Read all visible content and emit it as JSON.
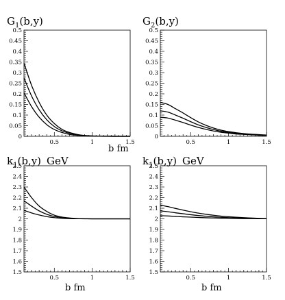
{
  "chart_data": [
    {
      "type": "line",
      "title": "G",
      "title_sub": "1",
      "title_rest": "(b,y)",
      "unit": "",
      "xlabel": "b fm",
      "xlim": [
        0.1,
        1.5
      ],
      "ylim": [
        0,
        0.5
      ],
      "xticks": [
        0.5,
        1,
        1.5
      ],
      "xticklabels": [
        "0.5",
        "1",
        "1.5"
      ],
      "yticks": [
        0,
        0.05,
        0.1,
        0.15,
        0.2,
        0.25,
        0.3,
        0.35,
        0.4,
        0.45,
        0.5
      ],
      "yticklabels": [
        "0",
        "0.05",
        "0.1",
        "0.15",
        "0.2",
        "0.25",
        "0.3",
        "0.35",
        "0.4",
        "0.45",
        "0.5"
      ],
      "x": [
        0.1,
        0.2,
        0.3,
        0.4,
        0.5,
        0.6,
        0.7,
        0.8,
        0.9,
        1.0,
        1.1,
        1.2,
        1.3,
        1.4,
        1.5
      ],
      "series": [
        {
          "values": [
            0.345,
            0.24,
            0.16,
            0.1,
            0.06,
            0.033,
            0.018,
            0.009,
            0.004,
            0.002,
            0.001,
            0.0005,
            0.0002,
            0.0001,
            0.0
          ]
        },
        {
          "values": [
            0.275,
            0.19,
            0.125,
            0.078,
            0.046,
            0.026,
            0.014,
            0.007,
            0.003,
            0.0015,
            0.0007,
            0.0003,
            0.0001,
            0.0,
            0.0
          ]
        },
        {
          "values": [
            0.205,
            0.14,
            0.09,
            0.055,
            0.032,
            0.018,
            0.009,
            0.0045,
            0.002,
            0.001,
            0.0004,
            0.0002,
            0.0001,
            0.0,
            0.0
          ]
        }
      ]
    },
    {
      "type": "line",
      "title": "G",
      "title_sub": "2",
      "title_rest": "(b,y)",
      "unit": "",
      "xlabel": "",
      "xlim": [
        0.1,
        1.5
      ],
      "ylim": [
        0,
        0.5
      ],
      "xticks": [
        0.5,
        1,
        1.5
      ],
      "xticklabels": [
        "0.5",
        "1",
        "1.5"
      ],
      "yticks": [
        0,
        0.05,
        0.1,
        0.15,
        0.2,
        0.25,
        0.3,
        0.35,
        0.4,
        0.45,
        0.5
      ],
      "yticklabels": [
        "0",
        "0.05",
        "0.1",
        "0.15",
        "0.2",
        "0.25",
        "0.3",
        "0.35",
        "0.4",
        "0.45",
        "0.5"
      ],
      "x": [
        0.1,
        0.2,
        0.3,
        0.4,
        0.5,
        0.6,
        0.7,
        0.8,
        0.9,
        1.0,
        1.1,
        1.2,
        1.3,
        1.4,
        1.5
      ],
      "series": [
        {
          "values": [
            0.16,
            0.15,
            0.13,
            0.11,
            0.088,
            0.068,
            0.052,
            0.039,
            0.029,
            0.022,
            0.017,
            0.013,
            0.01,
            0.008,
            0.006
          ]
        },
        {
          "values": [
            0.12,
            0.114,
            0.1,
            0.085,
            0.069,
            0.054,
            0.042,
            0.032,
            0.024,
            0.018,
            0.014,
            0.011,
            0.008,
            0.006,
            0.005
          ]
        },
        {
          "values": [
            0.09,
            0.086,
            0.076,
            0.065,
            0.053,
            0.042,
            0.033,
            0.025,
            0.019,
            0.015,
            0.011,
            0.009,
            0.007,
            0.005,
            0.004
          ]
        }
      ]
    },
    {
      "type": "line",
      "title": "k",
      "title_sub": "1",
      "title_rest": "(b,y)",
      "unit": "GeV",
      "xlabel": "b fm",
      "xlim": [
        0.1,
        1.5
      ],
      "ylim": [
        1.5,
        2.5
      ],
      "xticks": [
        0.5,
        1,
        1.5
      ],
      "xticklabels": [
        "0.5",
        "1",
        "1.5"
      ],
      "yticks": [
        1.5,
        1.6,
        1.7,
        1.8,
        1.9,
        2,
        2.1,
        2.2,
        2.3,
        2.4,
        2.5
      ],
      "yticklabels": [
        "1.5",
        "1.6",
        "1.7",
        "1.8",
        "1.9",
        "2",
        "2.1",
        "2.2",
        "2.3",
        "2.4",
        "2.5"
      ],
      "x": [
        0.1,
        0.2,
        0.3,
        0.4,
        0.5,
        0.6,
        0.7,
        0.8,
        0.9,
        1.0,
        1.1,
        1.2,
        1.3,
        1.4,
        1.5
      ],
      "series": [
        {
          "values": [
            2.3,
            2.2,
            2.12,
            2.07,
            2.035,
            2.017,
            2.008,
            2.003,
            2.001,
            2.0,
            2.0,
            2.0,
            2.0,
            2.0,
            2.0
          ]
        },
        {
          "values": [
            2.17,
            2.12,
            2.075,
            2.043,
            2.023,
            2.011,
            2.005,
            2.002,
            2.001,
            2.0,
            2.0,
            2.0,
            2.0,
            2.0,
            2.0
          ]
        },
        {
          "values": [
            2.08,
            2.056,
            2.036,
            2.021,
            2.011,
            2.005,
            2.002,
            2.001,
            2.0,
            2.0,
            2.0,
            2.0,
            2.0,
            2.0,
            2.0
          ]
        }
      ]
    },
    {
      "type": "line",
      "title": "k",
      "title_sub": "1",
      "title_rest": "(b,y)",
      "unit": "GeV",
      "xlabel": "b fm",
      "xlim": [
        0.1,
        1.5
      ],
      "ylim": [
        1.5,
        2.5
      ],
      "xticks": [
        0.5,
        1,
        1.5
      ],
      "xticklabels": [
        "0.5",
        "1",
        "1.5"
      ],
      "yticks": [
        1.5,
        1.6,
        1.7,
        1.8,
        1.9,
        2,
        2.1,
        2.2,
        2.3,
        2.4,
        2.5
      ],
      "yticklabels": [
        "1.5",
        "1.6",
        "1.7",
        "1.8",
        "1.9",
        "2",
        "2.1",
        "2.2",
        "2.3",
        "2.4",
        "2.5"
      ],
      "x": [
        0.1,
        0.2,
        0.3,
        0.4,
        0.5,
        0.6,
        0.7,
        0.8,
        0.9,
        1.0,
        1.1,
        1.2,
        1.3,
        1.4,
        1.5
      ],
      "series": [
        {
          "values": [
            2.13,
            2.115,
            2.098,
            2.082,
            2.067,
            2.054,
            2.043,
            2.034,
            2.026,
            2.02,
            2.015,
            2.011,
            2.008,
            2.005,
            2.003
          ]
        },
        {
          "values": [
            2.075,
            2.067,
            2.057,
            2.048,
            2.039,
            2.031,
            2.025,
            2.019,
            2.015,
            2.011,
            2.008,
            2.006,
            2.004,
            2.003,
            2.002
          ]
        },
        {
          "values": [
            2.03,
            2.027,
            2.023,
            2.019,
            2.016,
            2.013,
            2.01,
            2.008,
            2.006,
            2.005,
            2.003,
            2.002,
            2.002,
            2.001,
            2.001
          ]
        }
      ]
    }
  ]
}
